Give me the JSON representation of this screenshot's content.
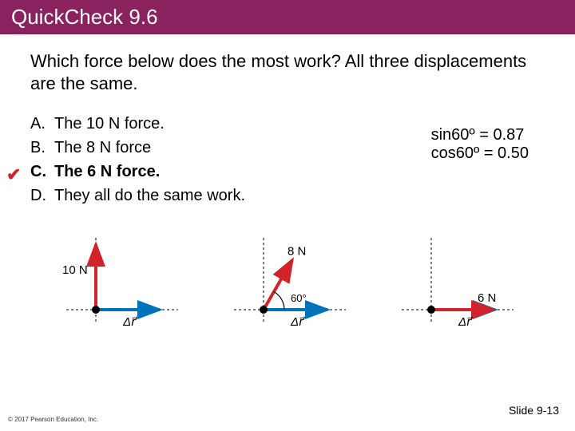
{
  "title": "QuickCheck 9.6",
  "question": "Which force below does the most work? All three displacements are the same.",
  "options": [
    {
      "letter": "A.",
      "text": "The 10 N force.",
      "bold": false,
      "checked": false
    },
    {
      "letter": "B.",
      "text": "The 8 N force",
      "bold": false,
      "checked": false
    },
    {
      "letter": "C.",
      "text": "The 6 N force.",
      "bold": true,
      "checked": true
    },
    {
      "letter": "D.",
      "text": "They all do the same work.",
      "bold": false,
      "checked": false
    }
  ],
  "hints": {
    "line1": "sin60º  = 0.87",
    "line2": "cos60º = 0.50"
  },
  "diagrams": {
    "force_color": "#d2232a",
    "disp_color": "#0072bc",
    "axis_color": "#000000",
    "panels": [
      {
        "force_label": "10 N",
        "angle_deg": 90,
        "angle_label": "",
        "disp_label": "Δr⃗"
      },
      {
        "force_label": "8 N",
        "angle_deg": 60,
        "angle_label": "60°",
        "disp_label": "Δr⃗"
      },
      {
        "force_label": "6 N",
        "angle_deg": 0,
        "angle_label": "",
        "disp_label": "Δr⃗"
      }
    ]
  },
  "footer": {
    "left": "© 2017 Pearson Education, Inc.",
    "right": "Slide 9-13"
  }
}
